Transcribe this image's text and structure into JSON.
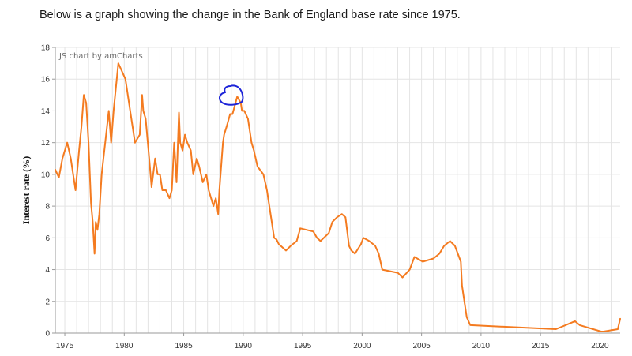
{
  "intro_text": "Below is a graph showing the change in the Bank of England base rate since 1975.",
  "credit": "JS chart by amCharts",
  "colors": {
    "line": "#f47b20",
    "annotation": "#1d24d8",
    "grid": "#e4e4e4",
    "axis": "#9a9a9a"
  },
  "chart_data": {
    "type": "line",
    "title": "",
    "xlabel": "",
    "ylabel": "Interest rate (%)",
    "xlim": [
      1974.2,
      2021.7
    ],
    "ylim": [
      0,
      18
    ],
    "y_ticks": [
      "0",
      "2",
      "4",
      "6",
      "8",
      "10",
      "12",
      "14",
      "16",
      "18"
    ],
    "x_ticks": [
      "1975",
      "1980",
      "1985",
      "1990",
      "1995",
      "2000",
      "2005",
      "2010",
      "2015",
      "2020"
    ],
    "grid": true,
    "legend": "none",
    "series": [
      {
        "x": [
          1974.2,
          1974.5,
          1974.8,
          1975.2,
          1975.5,
          1975.9,
          1976.2,
          1976.4,
          1976.6,
          1976.8,
          1977.0,
          1977.2,
          1977.35,
          1977.5,
          1977.6,
          1977.75,
          1977.9,
          1978.1,
          1978.4,
          1978.7,
          1978.9,
          1979.1,
          1979.5,
          1980.1,
          1980.5,
          1980.9,
          1981.3,
          1981.5,
          1981.6,
          1981.8,
          1982.1,
          1982.3,
          1982.6,
          1982.8,
          1983.0,
          1983.2,
          1983.5,
          1983.8,
          1984.0,
          1984.2,
          1984.4,
          1984.6,
          1984.7,
          1984.9,
          1985.0,
          1985.1,
          1985.3,
          1985.6,
          1985.8,
          1986.1,
          1986.3,
          1986.6,
          1986.9,
          1987.1,
          1987.3,
          1987.5,
          1987.7,
          1987.9,
          1988.0,
          1988.3,
          1988.4,
          1988.6,
          1988.9,
          1989.1,
          1989.5,
          1989.8,
          1989.9,
          1990.1,
          1990.4,
          1990.7,
          1990.9,
          1991.2,
          1991.4,
          1991.7,
          1992.0,
          1992.4,
          1992.6,
          1992.8,
          1993.0,
          1993.6,
          1994.0,
          1994.5,
          1994.8,
          1995.9,
          1996.2,
          1996.5,
          1997.2,
          1997.5,
          1997.9,
          1998.3,
          1998.6,
          1998.9,
          1999.1,
          1999.4,
          1999.9,
          2000.1,
          2000.6,
          2001.1,
          2001.4,
          2001.7,
          2003.0,
          2003.4,
          2004.0,
          2004.4,
          2005.1,
          2006.0,
          2006.5,
          2006.9,
          2007.4,
          2007.8,
          2008.3,
          2008.4,
          2008.8,
          2009.1,
          2016.3,
          2017.9,
          2018.3,
          2020.1,
          2020.3,
          2021.5,
          2021.7
        ],
        "values": [
          10.3,
          9.8,
          11.0,
          12.0,
          11.0,
          9.0,
          11.5,
          13.0,
          15.0,
          14.5,
          12.0,
          8.2,
          7.0,
          5.0,
          7.0,
          6.5,
          7.5,
          10.0,
          12.0,
          14.0,
          12.0,
          14.0,
          17.0,
          16.0,
          14.0,
          12.0,
          12.5,
          15.0,
          14.0,
          13.5,
          11.0,
          9.2,
          11.0,
          10.0,
          10.0,
          9.0,
          9.0,
          8.5,
          9.0,
          12.0,
          9.5,
          13.9,
          12.0,
          11.5,
          12.0,
          12.5,
          12.0,
          11.5,
          10.0,
          11.0,
          10.5,
          9.5,
          10.0,
          9.0,
          8.5,
          8.0,
          8.5,
          7.5,
          9.0,
          12.0,
          12.5,
          13.0,
          13.8,
          13.8,
          14.9,
          14.5,
          14.0,
          14.0,
          13.5,
          12.0,
          11.5,
          10.5,
          10.3,
          10.0,
          9.0,
          7.0,
          6.0,
          5.9,
          5.6,
          5.2,
          5.5,
          5.8,
          6.6,
          6.4,
          6.0,
          5.8,
          6.3,
          7.0,
          7.3,
          7.5,
          7.3,
          5.5,
          5.2,
          5.0,
          5.6,
          6.0,
          5.8,
          5.5,
          5.0,
          4.0,
          3.8,
          3.5,
          4.0,
          4.8,
          4.5,
          4.7,
          5.0,
          5.5,
          5.8,
          5.5,
          4.5,
          3.0,
          1.0,
          0.5,
          0.25,
          0.75,
          0.5,
          0.1,
          0.1,
          0.25,
          0.9
        ]
      }
    ],
    "annotation": "hand-drawn blue circle around the 1989 peak"
  }
}
